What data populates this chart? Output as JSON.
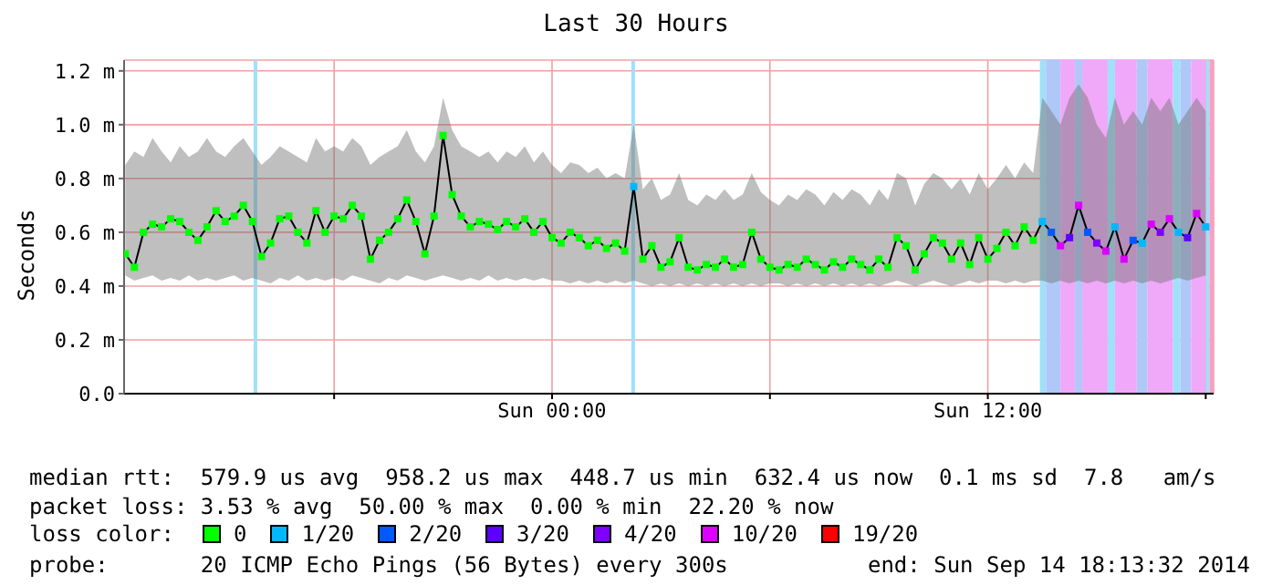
{
  "chart_data": {
    "type": "scatter",
    "title": "Last 30 Hours",
    "ylabel": "Seconds",
    "legend_title": "loss color:",
    "legend": "bottom",
    "marker": "square",
    "grid": true,
    "xlim": [
      "2014-09-13T12:13",
      "2014-09-14T18:13"
    ],
    "xticks": [
      {
        "value": "2014-09-13T18:00",
        "label": null
      },
      {
        "value": "2014-09-14T00:00",
        "label": "Sun 00:00"
      },
      {
        "value": "2014-09-14T06:00",
        "label": null
      },
      {
        "value": "2014-09-14T12:00",
        "label": "Sun 12:00"
      },
      {
        "value": "2014-09-14T18:00",
        "label": null
      }
    ],
    "ylim": [
      0,
      1.24
    ],
    "yticks": [
      {
        "value": 0,
        "label": "0.0"
      },
      {
        "value": 0.2,
        "label": "0.2 m"
      },
      {
        "value": 0.4,
        "label": "0.4 m"
      },
      {
        "value": 0.6,
        "label": "0.6 m"
      },
      {
        "value": 0.8,
        "label": "0.8 m"
      },
      {
        "value": 1.0,
        "label": "1.0 m"
      },
      {
        "value": 1.2,
        "label": "1.2 m"
      }
    ],
    "bands": [
      {
        "axis": "x",
        "from": "2014-09-13T15:47",
        "to": "2014-09-13T15:53",
        "color": "#a0e0f8"
      },
      {
        "axis": "x",
        "from": "2014-09-14T02:11",
        "to": "2014-09-14T02:17",
        "color": "#a0e0f8"
      },
      {
        "axis": "x",
        "from": "2014-09-14T13:26",
        "to": "2014-09-14T13:36",
        "color": "#a0e0f8"
      },
      {
        "axis": "x",
        "from": "2014-09-14T13:36",
        "to": "2014-09-14T14:00",
        "color": "#b0c8f8"
      },
      {
        "axis": "x",
        "from": "2014-09-14T14:00",
        "to": "2014-09-14T14:24",
        "color": "#f0a8f8"
      },
      {
        "axis": "x",
        "from": "2014-09-14T14:24",
        "to": "2014-09-14T14:36",
        "color": "#b0c8f8"
      },
      {
        "axis": "x",
        "from": "2014-09-14T14:36",
        "to": "2014-09-14T15:18",
        "color": "#f0a8f8"
      },
      {
        "axis": "x",
        "from": "2014-09-14T15:18",
        "to": "2014-09-14T15:30",
        "color": "#a0e0f8"
      },
      {
        "axis": "x",
        "from": "2014-09-14T15:30",
        "to": "2014-09-14T16:06",
        "color": "#f0a8f8"
      },
      {
        "axis": "x",
        "from": "2014-09-14T16:06",
        "to": "2014-09-14T16:24",
        "color": "#b0c8f8"
      },
      {
        "axis": "x",
        "from": "2014-09-14T16:24",
        "to": "2014-09-14T17:06",
        "color": "#f0a8f8"
      },
      {
        "axis": "x",
        "from": "2014-09-14T17:06",
        "to": "2014-09-14T17:18",
        "color": "#a0e0f8"
      },
      {
        "axis": "x",
        "from": "2014-09-14T17:18",
        "to": "2014-09-14T17:36",
        "color": "#b0c8f8"
      },
      {
        "axis": "x",
        "from": "2014-09-14T17:36",
        "to": "2014-09-14T18:00",
        "color": "#f0a8f8"
      },
      {
        "axis": "x",
        "from": "2014-09-14T18:00",
        "to": "2014-09-14T18:06",
        "color": "#a0e0f8"
      },
      {
        "axis": "x",
        "from": "2014-09-14T18:06",
        "to": "2014-09-14T18:13",
        "color": "#f8a0c8"
      }
    ],
    "annotations": [
      "median rtt:  579.9 us avg  958.2 us max  448.7 us min  632.4 us now  0.1 ms sd  7.8   am/s",
      "packet loss: 3.53 % avg  50.00 % max  0.00 % min  22.20 % now",
      "probe:       20 ICMP Echo Pings (56 Bytes) every 300s",
      "end: Sun Sep 14 18:13:32 2014"
    ],
    "series": [
      {
        "type": "line",
        "color": "#000000",
        "marker": "none",
        "x": [
          "2014-09-13T12:15",
          "2014-09-13T12:30",
          "2014-09-13T12:45",
          "2014-09-13T13:00",
          "2014-09-13T13:15",
          "2014-09-13T13:30",
          "2014-09-13T13:45",
          "2014-09-13T14:00",
          "2014-09-13T14:15",
          "2014-09-13T14:30",
          "2014-09-13T14:45",
          "2014-09-13T15:00",
          "2014-09-13T15:15",
          "2014-09-13T15:30",
          "2014-09-13T15:45",
          "2014-09-13T16:00",
          "2014-09-13T16:15",
          "2014-09-13T16:30",
          "2014-09-13T16:45",
          "2014-09-13T17:00",
          "2014-09-13T17:15",
          "2014-09-13T17:30",
          "2014-09-13T17:45",
          "2014-09-13T18:00",
          "2014-09-13T18:15",
          "2014-09-13T18:30",
          "2014-09-13T18:45",
          "2014-09-13T19:00",
          "2014-09-13T19:15",
          "2014-09-13T19:30",
          "2014-09-13T19:45",
          "2014-09-13T20:00",
          "2014-09-13T20:15",
          "2014-09-13T20:30",
          "2014-09-13T20:45",
          "2014-09-13T21:00",
          "2014-09-13T21:15",
          "2014-09-13T21:30",
          "2014-09-13T21:45",
          "2014-09-13T22:00",
          "2014-09-13T22:15",
          "2014-09-13T22:30",
          "2014-09-13T22:45",
          "2014-09-13T23:00",
          "2014-09-13T23:15",
          "2014-09-13T23:30",
          "2014-09-13T23:45",
          "2014-09-14T00:00",
          "2014-09-14T00:15",
          "2014-09-14T00:30",
          "2014-09-14T00:45",
          "2014-09-14T01:00",
          "2014-09-14T01:15",
          "2014-09-14T01:30",
          "2014-09-14T01:45",
          "2014-09-14T02:00",
          "2014-09-14T02:15",
          "2014-09-14T02:30",
          "2014-09-14T02:45",
          "2014-09-14T03:00",
          "2014-09-14T03:15",
          "2014-09-14T03:30",
          "2014-09-14T03:45",
          "2014-09-14T04:00",
          "2014-09-14T04:15",
          "2014-09-14T04:30",
          "2014-09-14T04:45",
          "2014-09-14T05:00",
          "2014-09-14T05:15",
          "2014-09-14T05:30",
          "2014-09-14T05:45",
          "2014-09-14T06:00",
          "2014-09-14T06:15",
          "2014-09-14T06:30",
          "2014-09-14T06:45",
          "2014-09-14T07:00",
          "2014-09-14T07:15",
          "2014-09-14T07:30",
          "2014-09-14T07:45",
          "2014-09-14T08:00",
          "2014-09-14T08:15",
          "2014-09-14T08:30",
          "2014-09-14T08:45",
          "2014-09-14T09:00",
          "2014-09-14T09:15",
          "2014-09-14T09:30",
          "2014-09-14T09:45",
          "2014-09-14T10:00",
          "2014-09-14T10:15",
          "2014-09-14T10:30",
          "2014-09-14T10:45",
          "2014-09-14T11:00",
          "2014-09-14T11:15",
          "2014-09-14T11:30",
          "2014-09-14T11:45",
          "2014-09-14T12:00",
          "2014-09-14T12:15",
          "2014-09-14T12:30",
          "2014-09-14T12:45",
          "2014-09-14T13:00",
          "2014-09-14T13:15",
          "2014-09-14T13:30",
          "2014-09-14T13:45",
          "2014-09-14T14:00",
          "2014-09-14T14:15",
          "2014-09-14T14:30",
          "2014-09-14T14:45",
          "2014-09-14T15:00",
          "2014-09-14T15:15",
          "2014-09-14T15:30",
          "2014-09-14T15:45",
          "2014-09-14T16:00",
          "2014-09-14T16:15",
          "2014-09-14T16:30",
          "2014-09-14T16:45",
          "2014-09-14T17:00",
          "2014-09-14T17:15",
          "2014-09-14T17:30",
          "2014-09-14T17:45",
          "2014-09-14T18:00"
        ],
        "values": [
          0.52,
          0.47,
          0.6,
          0.63,
          0.62,
          0.65,
          0.64,
          0.6,
          0.57,
          0.62,
          0.68,
          0.64,
          0.66,
          0.7,
          0.64,
          0.51,
          0.56,
          0.65,
          0.66,
          0.6,
          0.56,
          0.68,
          0.6,
          0.66,
          0.65,
          0.7,
          0.66,
          0.5,
          0.57,
          0.6,
          0.65,
          0.72,
          0.64,
          0.52,
          0.66,
          0.96,
          0.74,
          0.66,
          0.62,
          0.64,
          0.63,
          0.61,
          0.64,
          0.62,
          0.65,
          0.6,
          0.64,
          0.58,
          0.56,
          0.6,
          0.58,
          0.55,
          0.57,
          0.54,
          0.56,
          0.53,
          0.77,
          0.5,
          0.55,
          0.47,
          0.49,
          0.58,
          0.47,
          0.46,
          0.48,
          0.47,
          0.5,
          0.47,
          0.48,
          0.6,
          0.5,
          0.47,
          0.46,
          0.48,
          0.47,
          0.5,
          0.48,
          0.46,
          0.49,
          0.47,
          0.5,
          0.48,
          0.46,
          0.5,
          0.47,
          0.58,
          0.55,
          0.46,
          0.52,
          0.58,
          0.56,
          0.5,
          0.56,
          0.48,
          0.58,
          0.5,
          0.54,
          0.6,
          0.55,
          0.62,
          0.57,
          0.64,
          0.6,
          0.55,
          0.58,
          0.7,
          0.6,
          0.56,
          0.53,
          0.62,
          0.5,
          0.57,
          0.56,
          0.63,
          0.6,
          0.65,
          0.6,
          0.58,
          0.67,
          0.62
        ],
        "lower": [
          0.44,
          0.42,
          0.43,
          0.44,
          0.42,
          0.43,
          0.42,
          0.44,
          0.42,
          0.43,
          0.42,
          0.43,
          0.44,
          0.42,
          0.43,
          0.42,
          0.41,
          0.43,
          0.42,
          0.44,
          0.42,
          0.43,
          0.42,
          0.43,
          0.42,
          0.44,
          0.43,
          0.42,
          0.41,
          0.43,
          0.42,
          0.44,
          0.43,
          0.42,
          0.43,
          0.44,
          0.43,
          0.42,
          0.43,
          0.42,
          0.44,
          0.42,
          0.43,
          0.42,
          0.43,
          0.42,
          0.43,
          0.42,
          0.42,
          0.41,
          0.42,
          0.41,
          0.42,
          0.41,
          0.42,
          0.41,
          0.42,
          0.41,
          0.4,
          0.41,
          0.4,
          0.41,
          0.4,
          0.41,
          0.4,
          0.41,
          0.4,
          0.41,
          0.4,
          0.41,
          0.4,
          0.41,
          0.41,
          0.4,
          0.41,
          0.4,
          0.41,
          0.4,
          0.41,
          0.4,
          0.41,
          0.4,
          0.41,
          0.4,
          0.41,
          0.42,
          0.41,
          0.4,
          0.41,
          0.42,
          0.41,
          0.4,
          0.41,
          0.42,
          0.41,
          0.42,
          0.42,
          0.41,
          0.42,
          0.41,
          0.42,
          0.42,
          0.41,
          0.42,
          0.41,
          0.42,
          0.41,
          0.42,
          0.41,
          0.42,
          0.41,
          0.42,
          0.41,
          0.42,
          0.41,
          0.42,
          0.43,
          0.42,
          0.43,
          0.44
        ],
        "upper": [
          0.85,
          0.9,
          0.88,
          0.95,
          0.9,
          0.86,
          0.92,
          0.88,
          0.9,
          0.95,
          0.9,
          0.88,
          0.92,
          0.95,
          0.9,
          0.85,
          0.88,
          0.92,
          0.9,
          0.88,
          0.86,
          0.95,
          0.9,
          0.92,
          0.9,
          0.95,
          0.92,
          0.85,
          0.88,
          0.9,
          0.92,
          0.98,
          0.9,
          0.86,
          0.92,
          1.1,
          0.98,
          0.92,
          0.9,
          0.88,
          0.9,
          0.86,
          0.9,
          0.88,
          0.92,
          0.86,
          0.9,
          0.85,
          0.82,
          0.86,
          0.85,
          0.82,
          0.84,
          0.8,
          0.82,
          0.8,
          1.0,
          0.76,
          0.8,
          0.72,
          0.74,
          0.82,
          0.72,
          0.7,
          0.74,
          0.72,
          0.76,
          0.72,
          0.74,
          0.82,
          0.75,
          0.72,
          0.7,
          0.74,
          0.72,
          0.76,
          0.74,
          0.7,
          0.75,
          0.72,
          0.76,
          0.74,
          0.7,
          0.76,
          0.72,
          0.82,
          0.8,
          0.7,
          0.78,
          0.82,
          0.8,
          0.76,
          0.8,
          0.74,
          0.82,
          0.76,
          0.8,
          0.85,
          0.8,
          0.86,
          0.82,
          1.1,
          1.05,
          1.0,
          1.1,
          1.15,
          1.1,
          1.0,
          0.95,
          1.1,
          1.0,
          1.05,
          1.0,
          1.1,
          1.05,
          1.1,
          1.0,
          1.05,
          1.1,
          1.05
        ]
      },
      {
        "name": "0",
        "color": "#00ff00",
        "x": [
          "2014-09-13T12:15",
          "2014-09-13T12:30",
          "2014-09-13T12:45",
          "2014-09-13T13:00",
          "2014-09-13T13:15",
          "2014-09-13T13:30",
          "2014-09-13T13:45",
          "2014-09-13T14:00",
          "2014-09-13T14:15",
          "2014-09-13T14:30",
          "2014-09-13T14:45",
          "2014-09-13T15:00",
          "2014-09-13T15:15",
          "2014-09-13T15:30",
          "2014-09-13T15:45",
          "2014-09-13T16:00",
          "2014-09-13T16:15",
          "2014-09-13T16:30",
          "2014-09-13T16:45",
          "2014-09-13T17:00",
          "2014-09-13T17:15",
          "2014-09-13T17:30",
          "2014-09-13T17:45",
          "2014-09-13T18:00",
          "2014-09-13T18:15",
          "2014-09-13T18:30",
          "2014-09-13T18:45",
          "2014-09-13T19:00",
          "2014-09-13T19:15",
          "2014-09-13T19:30",
          "2014-09-13T19:45",
          "2014-09-13T20:00",
          "2014-09-13T20:15",
          "2014-09-13T20:30",
          "2014-09-13T20:45",
          "2014-09-13T21:00",
          "2014-09-13T21:15",
          "2014-09-13T21:30",
          "2014-09-13T21:45",
          "2014-09-13T22:00",
          "2014-09-13T22:15",
          "2014-09-13T22:30",
          "2014-09-13T22:45",
          "2014-09-13T23:00",
          "2014-09-13T23:15",
          "2014-09-13T23:30",
          "2014-09-13T23:45",
          "2014-09-14T00:00",
          "2014-09-14T00:15",
          "2014-09-14T00:30",
          "2014-09-14T00:45",
          "2014-09-14T01:00",
          "2014-09-14T01:15",
          "2014-09-14T01:30",
          "2014-09-14T01:45",
          "2014-09-14T02:00",
          "2014-09-14T02:30",
          "2014-09-14T02:45",
          "2014-09-14T03:00",
          "2014-09-14T03:15",
          "2014-09-14T03:30",
          "2014-09-14T03:45",
          "2014-09-14T04:00",
          "2014-09-14T04:15",
          "2014-09-14T04:30",
          "2014-09-14T04:45",
          "2014-09-14T05:00",
          "2014-09-14T05:15",
          "2014-09-14T05:30",
          "2014-09-14T05:45",
          "2014-09-14T06:00",
          "2014-09-14T06:15",
          "2014-09-14T06:30",
          "2014-09-14T06:45",
          "2014-09-14T07:00",
          "2014-09-14T07:15",
          "2014-09-14T07:30",
          "2014-09-14T07:45",
          "2014-09-14T08:00",
          "2014-09-14T08:15",
          "2014-09-14T08:30",
          "2014-09-14T08:45",
          "2014-09-14T09:00",
          "2014-09-14T09:15",
          "2014-09-14T09:30",
          "2014-09-14T09:45",
          "2014-09-14T10:00",
          "2014-09-14T10:15",
          "2014-09-14T10:30",
          "2014-09-14T10:45",
          "2014-09-14T11:00",
          "2014-09-14T11:15",
          "2014-09-14T11:30",
          "2014-09-14T11:45",
          "2014-09-14T12:00",
          "2014-09-14T12:15",
          "2014-09-14T12:30",
          "2014-09-14T12:45",
          "2014-09-14T13:00",
          "2014-09-14T13:15"
        ],
        "values": [
          0.52,
          0.47,
          0.6,
          0.63,
          0.62,
          0.65,
          0.64,
          0.6,
          0.57,
          0.62,
          0.68,
          0.64,
          0.66,
          0.7,
          0.64,
          0.51,
          0.56,
          0.65,
          0.66,
          0.6,
          0.56,
          0.68,
          0.6,
          0.66,
          0.65,
          0.7,
          0.66,
          0.5,
          0.57,
          0.6,
          0.65,
          0.72,
          0.64,
          0.52,
          0.66,
          0.96,
          0.74,
          0.66,
          0.62,
          0.64,
          0.63,
          0.61,
          0.64,
          0.62,
          0.65,
          0.6,
          0.64,
          0.58,
          0.56,
          0.6,
          0.58,
          0.55,
          0.57,
          0.54,
          0.56,
          0.53,
          0.5,
          0.55,
          0.47,
          0.49,
          0.58,
          0.47,
          0.46,
          0.48,
          0.47,
          0.5,
          0.47,
          0.48,
          0.6,
          0.5,
          0.47,
          0.46,
          0.48,
          0.47,
          0.5,
          0.48,
          0.46,
          0.49,
          0.47,
          0.5,
          0.48,
          0.46,
          0.5,
          0.47,
          0.58,
          0.55,
          0.46,
          0.52,
          0.58,
          0.56,
          0.5,
          0.56,
          0.48,
          0.58,
          0.5,
          0.54,
          0.6,
          0.55,
          0.62,
          0.57
        ]
      },
      {
        "name": "1/20",
        "color": "#00b8ff",
        "x": [
          "2014-09-14T02:15",
          "2014-09-14T13:30",
          "2014-09-14T15:30",
          "2014-09-14T16:15",
          "2014-09-14T17:15",
          "2014-09-14T18:00"
        ],
        "values": [
          0.77,
          0.64,
          0.62,
          0.56,
          0.6,
          0.62
        ]
      },
      {
        "name": "2/20",
        "color": "#0059ff",
        "x": [
          "2014-09-14T13:45",
          "2014-09-14T14:45",
          "2014-09-14T16:00"
        ],
        "values": [
          0.6,
          0.6,
          0.57
        ]
      },
      {
        "name": "3/20",
        "color": "#5e00ff",
        "x": [
          "2014-09-14T14:15",
          "2014-09-14T17:30"
        ],
        "values": [
          0.58,
          0.58
        ]
      },
      {
        "name": "4/20",
        "color": "#7e00ff",
        "x": [
          "2014-09-14T15:00",
          "2014-09-14T16:45"
        ],
        "values": [
          0.56,
          0.6
        ]
      },
      {
        "name": "10/20",
        "color": "#dd00ff",
        "x": [
          "2014-09-14T14:00",
          "2014-09-14T14:30",
          "2014-09-14T15:15",
          "2014-09-14T15:45",
          "2014-09-14T16:30",
          "2014-09-14T17:00",
          "2014-09-14T17:45"
        ],
        "values": [
          0.55,
          0.7,
          0.53,
          0.5,
          0.63,
          0.65,
          0.67
        ]
      },
      {
        "name": "19/20",
        "color": "#ff0000"
      }
    ]
  }
}
